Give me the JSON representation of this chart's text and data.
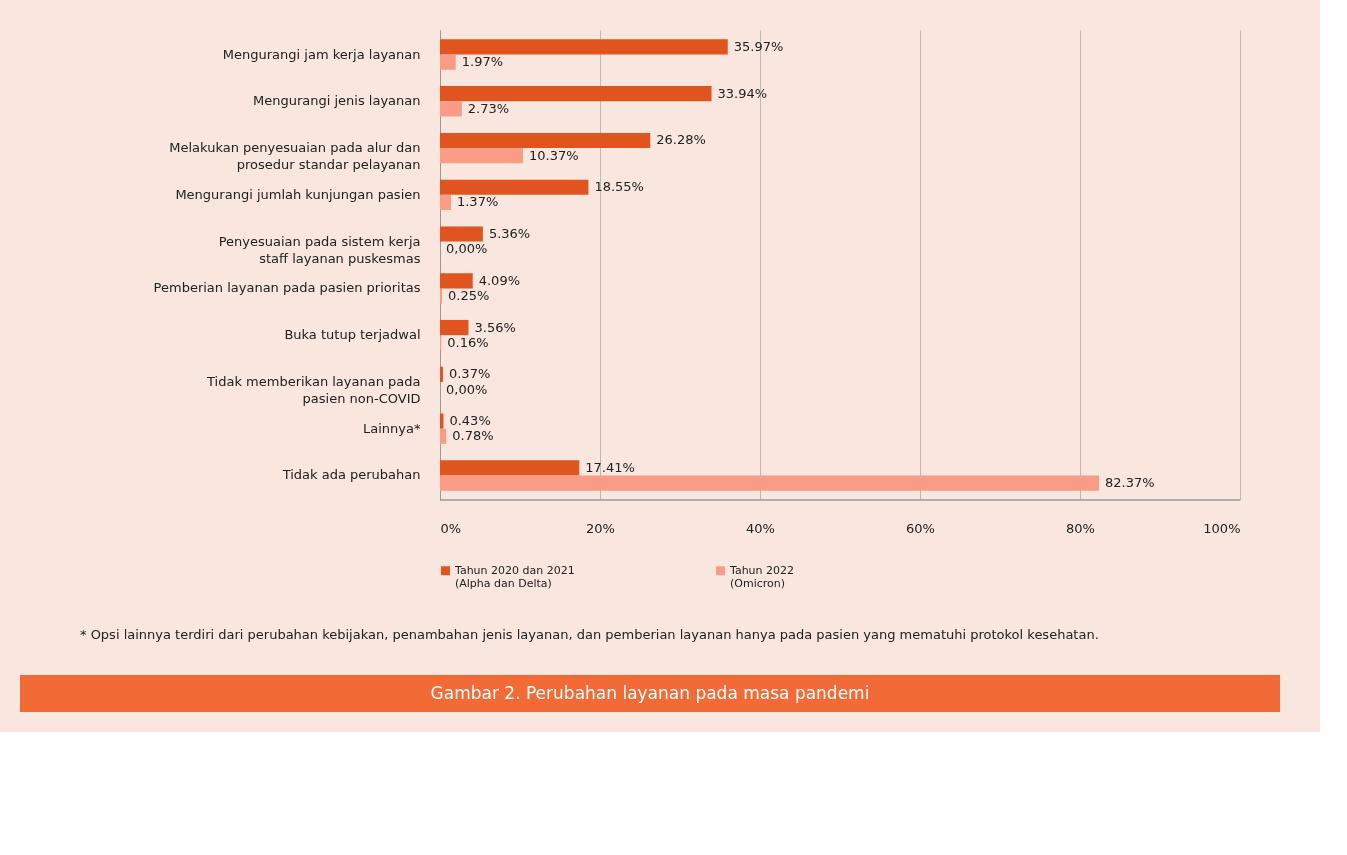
{
  "chart_data": {
    "type": "bar",
    "orientation": "horizontal",
    "title": "Gambar 2. Perubahan layanan pada masa pandemi",
    "categories": [
      "Mengurangi jam kerja layanan",
      "Mengurangi jenis layanan",
      "Melakukan penyesuaian pada alur dan\nprosedur standar pelayanan",
      "Mengurangi jumlah kunjungan pasien",
      "Penyesuaian pada sistem kerja\nstaff layanan puskesmas",
      "Pemberian layanan pada pasien prioritas",
      "Buka tutup terjadwal",
      "Tidak memberikan layanan pada\npasien non-COVID",
      "Lainnya*",
      "Tidak ada perubahan"
    ],
    "series": [
      {
        "name": "Tahun 2020 dan 2021\n(Alpha dan Delta)",
        "color": "#e0541f",
        "values": [
          35.97,
          33.94,
          26.28,
          18.55,
          5.36,
          4.09,
          3.56,
          0.37,
          0.43,
          17.41
        ],
        "value_labels": [
          "35.97%",
          "33.94%",
          "26.28%",
          "18.55%",
          "5.36%",
          "4.09%",
          "3.56%",
          "0.37%",
          "0.43%",
          "17.41%"
        ]
      },
      {
        "name": "Tahun 2022\n(Omicron)",
        "color": "#f99b85",
        "values": [
          1.97,
          2.73,
          10.37,
          1.37,
          0.0,
          0.25,
          0.16,
          0.0,
          0.78,
          82.37
        ],
        "value_labels": [
          "1.97%",
          "2.73%",
          "10.37%",
          "1.37%",
          "0,00%",
          "0.25%",
          "0.16%",
          "0,00%",
          "0.78%",
          "82.37%"
        ]
      }
    ],
    "xlim": [
      0,
      100
    ],
    "xticks": [
      {
        "value": 0,
        "label": "0%"
      },
      {
        "value": 20,
        "label": "20%"
      },
      {
        "value": 40,
        "label": "40%"
      },
      {
        "value": 60,
        "label": "60%"
      },
      {
        "value": 80,
        "label": "80%"
      },
      {
        "value": 100,
        "label": "100%"
      }
    ],
    "grid": "x",
    "legend": "bottom",
    "annotations": [
      "* Opsi lainnya terdiri dari perubahan kebijakan, penambahan jenis layanan, dan pemberian layanan hanya pada pasien yang mematuhi protokol kesehatan."
    ]
  }
}
